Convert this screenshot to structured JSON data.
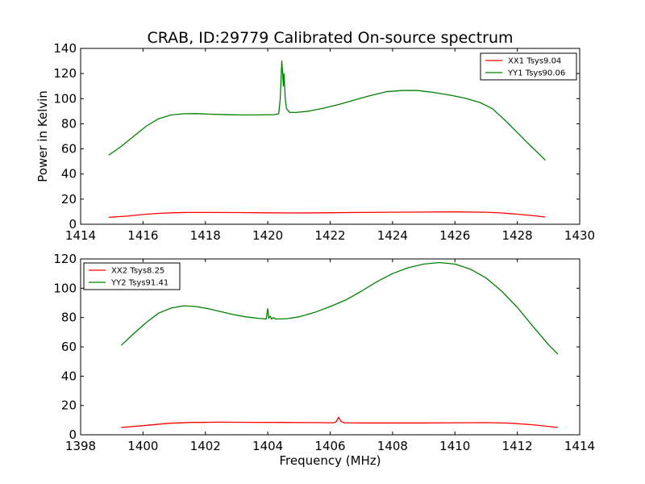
{
  "chart_data": [
    {
      "type": "line",
      "title": "CRAB, ID:29779 Calibrated On-source spectrum",
      "xlabel": "",
      "ylabel": "Power in Kelvin",
      "xlim": [
        1414,
        1430
      ],
      "ylim": [
        0,
        140
      ],
      "xticks": [
        1414,
        1416,
        1418,
        1420,
        1422,
        1424,
        1426,
        1428,
        1430
      ],
      "yticks": [
        0,
        20,
        40,
        60,
        80,
        100,
        120,
        140
      ],
      "grid": false,
      "legend_position": "top-right",
      "series": [
        {
          "name": "XX1 Tsys9.04",
          "color": "#ff0000",
          "points": [
            [
              1414.9,
              5.5
            ],
            [
              1415.5,
              6.5
            ],
            [
              1416,
              7.8
            ],
            [
              1416.5,
              8.7
            ],
            [
              1417,
              9.2
            ],
            [
              1417.5,
              9.4
            ],
            [
              1418,
              9.4
            ],
            [
              1419,
              9.3
            ],
            [
              1420,
              9.1
            ],
            [
              1421,
              9.0
            ],
            [
              1422,
              9.2
            ],
            [
              1423,
              9.4
            ],
            [
              1424,
              9.6
            ],
            [
              1425,
              9.7
            ],
            [
              1426,
              9.8
            ],
            [
              1427,
              9.6
            ],
            [
              1427.5,
              9.0
            ],
            [
              1428,
              8.0
            ],
            [
              1428.5,
              6.8
            ],
            [
              1428.9,
              5.8
            ]
          ]
        },
        {
          "name": "YY1 Tsys90.06",
          "color": "#008000",
          "points": [
            [
              1414.9,
              55
            ],
            [
              1415.3,
              62
            ],
            [
              1415.7,
              70
            ],
            [
              1416.1,
              78
            ],
            [
              1416.5,
              84
            ],
            [
              1416.9,
              87
            ],
            [
              1417.3,
              88
            ],
            [
              1417.7,
              88.1
            ],
            [
              1418.2,
              87.6
            ],
            [
              1418.7,
              87.2
            ],
            [
              1419.2,
              87
            ],
            [
              1419.7,
              87
            ],
            [
              1420.2,
              87.3
            ],
            [
              1420.35,
              88
            ],
            [
              1420.4,
              100
            ],
            [
              1420.45,
              130
            ],
            [
              1420.5,
              110
            ],
            [
              1420.52,
              120
            ],
            [
              1420.56,
              100
            ],
            [
              1420.6,
              92
            ],
            [
              1420.7,
              89
            ],
            [
              1420.9,
              89
            ],
            [
              1421.3,
              90
            ],
            [
              1421.8,
              92.5
            ],
            [
              1422.3,
              95.5
            ],
            [
              1422.8,
              99
            ],
            [
              1423.3,
              102.5
            ],
            [
              1423.8,
              105.5
            ],
            [
              1424.3,
              106.5
            ],
            [
              1424.8,
              106.5
            ],
            [
              1425.3,
              105
            ],
            [
              1425.8,
              103
            ],
            [
              1426.3,
              100.5
            ],
            [
              1426.8,
              97
            ],
            [
              1427.2,
              92
            ],
            [
              1427.6,
              83
            ],
            [
              1428,
              73
            ],
            [
              1428.4,
              63
            ],
            [
              1428.7,
              56
            ],
            [
              1428.9,
              51
            ]
          ]
        }
      ]
    },
    {
      "type": "line",
      "title": "",
      "xlabel": "Frequency (MHz)",
      "ylabel": "",
      "xlim": [
        1398,
        1414
      ],
      "ylim": [
        0,
        120
      ],
      "xticks": [
        1398,
        1400,
        1402,
        1404,
        1406,
        1408,
        1410,
        1412,
        1414
      ],
      "yticks": [
        0,
        20,
        40,
        60,
        80,
        100,
        120
      ],
      "grid": false,
      "legend_position": "top-left",
      "series": [
        {
          "name": "XX2 Tsys8.25",
          "color": "#ff0000",
          "points": [
            [
              1399.3,
              5
            ],
            [
              1400,
              6.2
            ],
            [
              1400.8,
              7.8
            ],
            [
              1401.5,
              8.4
            ],
            [
              1402.5,
              8.6
            ],
            [
              1403.5,
              8.5
            ],
            [
              1404.5,
              8.4
            ],
            [
              1405.5,
              8.3
            ],
            [
              1406.1,
              8.2
            ],
            [
              1406.2,
              9
            ],
            [
              1406.27,
              12
            ],
            [
              1406.35,
              9
            ],
            [
              1406.45,
              8.2
            ],
            [
              1407,
              8.1
            ],
            [
              1408,
              8.1
            ],
            [
              1409,
              8.1
            ],
            [
              1410,
              8.2
            ],
            [
              1411,
              8.3
            ],
            [
              1411.8,
              7.9
            ],
            [
              1412.5,
              6.8
            ],
            [
              1413.3,
              5
            ]
          ]
        },
        {
          "name": "YY2 Tsys91.41",
          "color": "#008000",
          "points": [
            [
              1399.3,
              61
            ],
            [
              1399.7,
              69
            ],
            [
              1400.1,
              76.5
            ],
            [
              1400.5,
              83
            ],
            [
              1400.9,
              86.5
            ],
            [
              1401.3,
              88
            ],
            [
              1401.7,
              87.5
            ],
            [
              1402.1,
              86
            ],
            [
              1402.5,
              84
            ],
            [
              1402.9,
              82
            ],
            [
              1403.3,
              80.5
            ],
            [
              1403.7,
              79.5
            ],
            [
              1403.95,
              79
            ],
            [
              1404.0,
              86
            ],
            [
              1404.03,
              79.5
            ],
            [
              1404.08,
              81
            ],
            [
              1404.12,
              79
            ],
            [
              1404.18,
              80
            ],
            [
              1404.25,
              79
            ],
            [
              1404.6,
              79.2
            ],
            [
              1405,
              80.5
            ],
            [
              1405.5,
              83.5
            ],
            [
              1406,
              87.5
            ],
            [
              1406.5,
              92
            ],
            [
              1407,
              98
            ],
            [
              1407.5,
              104.5
            ],
            [
              1408,
              110
            ],
            [
              1408.5,
              114
            ],
            [
              1409,
              116.5
            ],
            [
              1409.5,
              117.5
            ],
            [
              1410,
              116.5
            ],
            [
              1410.5,
              113
            ],
            [
              1411,
              107
            ],
            [
              1411.5,
              98
            ],
            [
              1412,
              87
            ],
            [
              1412.5,
              74
            ],
            [
              1413,
              61.5
            ],
            [
              1413.3,
              55
            ]
          ]
        }
      ]
    }
  ]
}
